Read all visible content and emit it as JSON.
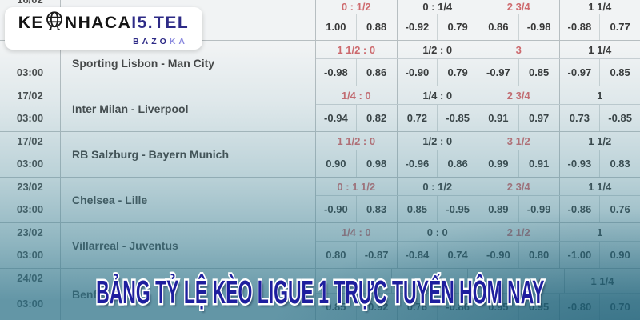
{
  "logo": {
    "part1": "KE",
    "part2": "NHACA",
    "part3": "I5.TEL",
    "subtitle_left": "BAZO",
    "subtitle_right": "KA",
    "navy": "#2d2a86"
  },
  "banner": {
    "text": "BẢNG TỶ LỆ KÈO LIGUE 1 TRỰC TUYẾN HÔM NAY",
    "color": "#1e1e9e"
  },
  "table": {
    "handicap_red": "#ce6a6e",
    "handicap_dark": "#3a3a3a",
    "teal_accent": "#3f8799",
    "blocks": [
      {
        "date": "16/02",
        "time": "",
        "match": "",
        "handicaps": [
          {
            "text": "0 : 1/2",
            "tone": "red"
          },
          {
            "text": "0 : 1/4",
            "tone": "dark"
          },
          {
            "text": "2 3/4",
            "tone": "red"
          },
          {
            "text": "1 1/4",
            "tone": "dark"
          }
        ],
        "odds": [
          "1.00",
          "0.88",
          "-0.92",
          "0.79",
          "0.86",
          "-0.98",
          "-0.88",
          "0.77"
        ]
      },
      {
        "date": "",
        "time": "03:00",
        "match": "Sporting Lisbon - Man City",
        "handicaps": [
          {
            "text": "1 1/2 : 0",
            "tone": "red"
          },
          {
            "text": "1/2 : 0",
            "tone": "dark"
          },
          {
            "text": "3",
            "tone": "red"
          },
          {
            "text": "1 1/4",
            "tone": "dark"
          }
        ],
        "odds": [
          "-0.98",
          "0.86",
          "-0.90",
          "0.79",
          "-0.97",
          "0.85",
          "-0.97",
          "0.85"
        ]
      },
      {
        "date": "17/02",
        "time": "03:00",
        "match": "Inter Milan - Liverpool",
        "handicaps": [
          {
            "text": "1/4 : 0",
            "tone": "red"
          },
          {
            "text": "1/4 : 0",
            "tone": "dark"
          },
          {
            "text": "2 3/4",
            "tone": "red"
          },
          {
            "text": "1",
            "tone": "dark"
          }
        ],
        "odds": [
          "-0.94",
          "0.82",
          "0.72",
          "-0.85",
          "0.91",
          "0.97",
          "0.73",
          "-0.85"
        ]
      },
      {
        "date": "17/02",
        "time": "03:00",
        "match": "RB Salzburg - Bayern Munich",
        "handicaps": [
          {
            "text": "1 1/2 : 0",
            "tone": "red"
          },
          {
            "text": "1/2 : 0",
            "tone": "dark"
          },
          {
            "text": "3 1/2",
            "tone": "red"
          },
          {
            "text": "1 1/2",
            "tone": "dark"
          }
        ],
        "odds": [
          "0.90",
          "0.98",
          "-0.96",
          "0.86",
          "0.99",
          "0.91",
          "-0.93",
          "0.83"
        ]
      },
      {
        "date": "23/02",
        "time": "03:00",
        "match": "Chelsea - Lille",
        "handicaps": [
          {
            "text": "0 : 1 1/2",
            "tone": "red"
          },
          {
            "text": "0 : 1/2",
            "tone": "dark"
          },
          {
            "text": "2 3/4",
            "tone": "red"
          },
          {
            "text": "1 1/4",
            "tone": "dark"
          }
        ],
        "odds": [
          "-0.90",
          "0.83",
          "0.85",
          "-0.95",
          "0.89",
          "-0.99",
          "-0.86",
          "0.76"
        ]
      },
      {
        "date": "23/02",
        "time": "03:00",
        "match": "Villarreal - Juventus",
        "handicaps": [
          {
            "text": "1/4 : 0",
            "tone": "red"
          },
          {
            "text": "0 : 0",
            "tone": "dark"
          },
          {
            "text": "2 1/2",
            "tone": "red"
          },
          {
            "text": "1",
            "tone": "dark"
          }
        ],
        "odds": [
          "0.80",
          "-0.87",
          "-0.84",
          "0.74",
          "-0.90",
          "0.80",
          "-1.00",
          "0.90"
        ]
      },
      {
        "date": "24/02",
        "time": "03:00",
        "match": "Benfica",
        "handicaps": [
          {
            "text": "",
            "tone": "red"
          },
          {
            "text": "",
            "tone": "dark"
          },
          {
            "text": "4",
            "tone": "red"
          },
          {
            "text": "1 1/4",
            "tone": "dark"
          }
        ],
        "odds": [
          "0.85",
          "-0.92",
          "0.76",
          "-0.86",
          "0.95",
          "0.95",
          "-0.80",
          "0.70"
        ]
      }
    ]
  }
}
